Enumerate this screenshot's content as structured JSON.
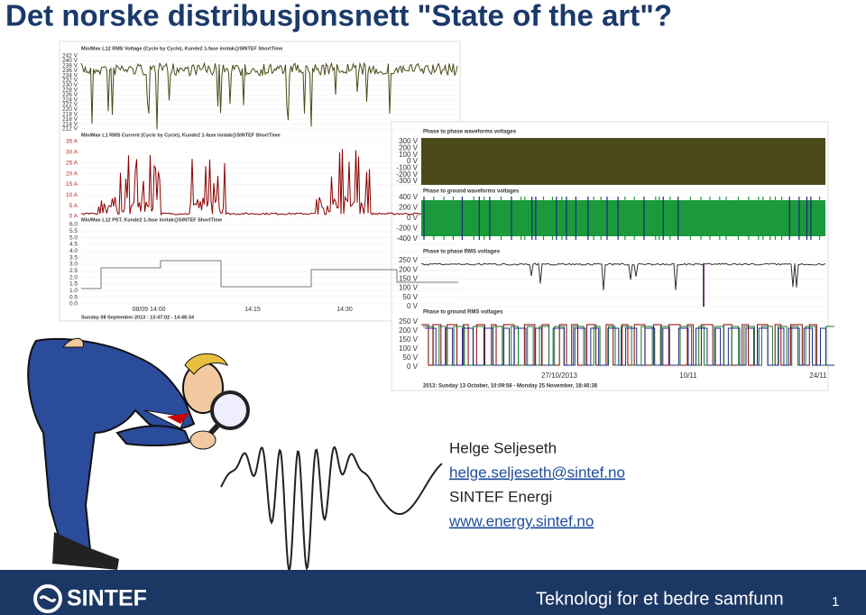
{
  "title": "Det norske distribusjonsnett \"State of the art\"?",
  "left_screenshot": {
    "panels": [
      {
        "title": "Min/Max L12 RMS Voltage (Cycle by Cycle), Kunde2 1-fase inntak@SINTEF ShortTime",
        "ticks": [
          "242 V",
          "240 V",
          "238 V",
          "236 V",
          "234 V",
          "232 V",
          "230 V",
          "228 V",
          "226 V",
          "224 V",
          "222 V",
          "220 V",
          "218 V",
          "216 V",
          "214 V",
          "212 V"
        ]
      },
      {
        "title": "Min/Max L1 RMS Current (Cycle by Cycle), Kunde2 1-fase inntak@SINTEF ShortTime",
        "ticks": [
          "35 A",
          "30 A",
          "25 A",
          "20 A",
          "15 A",
          "10 A",
          "5 A",
          "0 A"
        ]
      },
      {
        "title": "Min/Max L12 PST, Kunde2 1-fase inntak@SINTEF ShortTime",
        "ticks": [
          "6.0",
          "5.5",
          "5.0",
          "4.5",
          "4.0",
          "3.5",
          "3.0",
          "2.5",
          "2.0",
          "1.5",
          "1.0",
          "0.5",
          "0.0"
        ]
      }
    ],
    "x_ticks": [
      "08/09 14:00",
      "14:15",
      "14:30"
    ],
    "footer": "Sunday 08 September 2013 : 13:47:02 - 14:48:34"
  },
  "right_screenshot": {
    "panels": [
      {
        "title": "Phase to phase waveforms voltages",
        "ticks": [
          "300 V",
          "200 V",
          "100 V",
          "0 V",
          "-100 V",
          "-200 V",
          "-300 V"
        ]
      },
      {
        "title": "Phase to ground waveforms voltages",
        "ticks": [
          "400 V",
          "200 V",
          "0 V",
          "-200 V",
          "-400 V"
        ]
      },
      {
        "title": "Phase to phase RMS voltages",
        "ticks": [
          "250 V",
          "200 V",
          "150 V",
          "100 V",
          "50 V",
          "0 V"
        ]
      },
      {
        "title": "Phase to ground RMS voltages",
        "ticks": [
          "250 V",
          "200 V",
          "150 V",
          "100 V",
          "50 V",
          "0 V"
        ]
      }
    ],
    "x_ticks": [
      "27/10/2013",
      "10/11",
      "24/11"
    ],
    "footer": "2013: Sunday 13 October, 10:09:56 - Monday 25 November, 18:46:38"
  },
  "contact": {
    "name": "Helge Seljeseth",
    "email": "helge.seljeseth@sintef.no",
    "organization": "SINTEF Energi",
    "web": "www.energy.sintef.no"
  },
  "footer": {
    "logo": "SINTEF",
    "tagline": "Teknologi for et bedre samfunn",
    "page": "1"
  }
}
